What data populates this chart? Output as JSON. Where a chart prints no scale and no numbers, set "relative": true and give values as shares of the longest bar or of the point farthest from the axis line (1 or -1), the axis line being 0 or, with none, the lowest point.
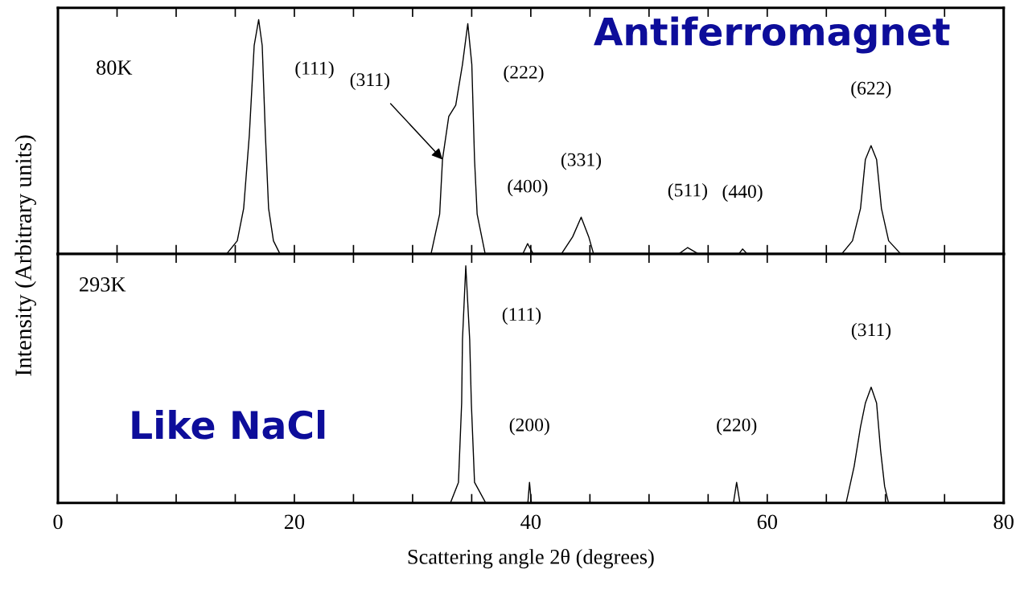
{
  "chart_data": [
    {
      "type": "line",
      "relative": true,
      "ylabel": "Intensity (Arbitrary units)",
      "xlim": [
        0,
        80
      ],
      "tick_labels": false,
      "marker": "none",
      "line_style": "solid",
      "grid": false,
      "legend": false,
      "xticks": [
        {
          "value": 0,
          "label": null
        },
        {
          "value": 5,
          "label": null
        },
        {
          "value": 10,
          "label": null
        },
        {
          "value": 15,
          "label": null
        },
        {
          "value": 20,
          "label": null
        },
        {
          "value": 25,
          "label": null
        },
        {
          "value": 30,
          "label": null
        },
        {
          "value": 35,
          "label": null
        },
        {
          "value": 40,
          "label": null
        },
        {
          "value": 45,
          "label": null
        },
        {
          "value": 50,
          "label": null
        },
        {
          "value": 55,
          "label": null
        },
        {
          "value": 60,
          "label": null
        },
        {
          "value": 65,
          "label": null
        },
        {
          "value": 70,
          "label": null
        },
        {
          "value": 75,
          "label": null
        },
        {
          "value": 80,
          "label": null
        }
      ],
      "series": [
        {
          "color": "#000000",
          "x": [
            0,
            14.27,
            15.17,
            15.71,
            16.19,
            16.6,
            16.98,
            17.28,
            17.55,
            17.82,
            18.23,
            18.78,
            31.56,
            32.29,
            32.53,
            33.06,
            33.65,
            34.22,
            34.67,
            35.01,
            35.24,
            35.46,
            36.14,
            39.32,
            39.73,
            40.2,
            42.59,
            43.54,
            44.26,
            44.9,
            45.31,
            52.52,
            53.27,
            54.17,
            57.6,
            57.91,
            58.3,
            66.3,
            67.21,
            67.89,
            68.3,
            68.78,
            69.25,
            69.66,
            70.27,
            71.29,
            80
          ],
          "values": [
            0,
            0,
            0.056,
            0.194,
            0.507,
            0.889,
            1.0,
            0.889,
            0.507,
            0.194,
            0.056,
            0,
            0,
            0.17,
            0.403,
            0.587,
            0.635,
            0.809,
            0.983,
            0.809,
            0.403,
            0.17,
            0,
            0,
            0.044,
            0,
            0,
            0.073,
            0.157,
            0.073,
            0,
            0,
            0.027,
            0,
            0,
            0.021,
            0,
            0,
            0.056,
            0.194,
            0.403,
            0.462,
            0.403,
            0.194,
            0.056,
            0,
            0
          ]
        }
      ],
      "annotations": [
        "80K",
        "Antiferromagnet",
        {
          "text": "(111)",
          "x": 16.98,
          "y": 1.0
        },
        {
          "text": "(222)",
          "x": 34.67,
          "y": 0.983
        },
        {
          "text": "(311)",
          "x": 32.53,
          "y": 0.403
        },
        {
          "text": "(400)",
          "x": 39.73,
          "y": 0.044
        },
        {
          "text": "(331)",
          "x": 44.26,
          "y": 0.157
        },
        {
          "text": "(511)",
          "x": 53.27,
          "y": 0.027
        },
        {
          "text": "(440)",
          "x": 57.91,
          "y": 0.021
        },
        {
          "text": "(622)",
          "x": 68.78,
          "y": 0.462
        }
      ]
    },
    {
      "type": "line",
      "relative": true,
      "xlabel": "Scattering angle 2θ (degrees)",
      "xlim": [
        0,
        80
      ],
      "tick_labels": "x",
      "marker": "none",
      "line_style": "solid",
      "grid": false,
      "legend": false,
      "xticks": [
        0,
        {
          "value": 5,
          "label": null
        },
        {
          "value": 10,
          "label": null
        },
        {
          "value": 15,
          "label": null
        },
        20,
        {
          "value": 25,
          "label": null
        },
        {
          "value": 30,
          "label": null
        },
        {
          "value": 35,
          "label": null
        },
        40,
        {
          "value": 45,
          "label": null
        },
        {
          "value": 50,
          "label": null
        },
        {
          "value": 55,
          "label": null
        },
        60,
        {
          "value": 65,
          "label": null
        },
        {
          "value": 70,
          "label": null
        },
        {
          "value": 75,
          "label": null
        },
        80
      ],
      "series": [
        {
          "color": "#000000",
          "x": [
            0,
            33.2,
            33.88,
            34.15,
            34.22,
            34.5,
            34.83,
            34.97,
            35.24,
            36.19,
            39.75,
            39.89,
            40.05,
            57.14,
            57.41,
            57.69,
            66.67,
            67.35,
            67.89,
            68.3,
            68.79,
            69.25,
            69.59,
            69.93,
            70.26,
            80
          ],
          "values": [
            0,
            0,
            0.087,
            0.421,
            0.689,
            1.0,
            0.689,
            0.421,
            0.087,
            0,
            0,
            0.087,
            0,
            0,
            0.087,
            0,
            0,
            0.154,
            0.321,
            0.421,
            0.488,
            0.421,
            0.221,
            0.07,
            0,
            0
          ]
        }
      ],
      "annotations": [
        "293K",
        "Like NaCl",
        {
          "text": "(111)",
          "x": 34.5,
          "y": 1.0
        },
        {
          "text": "(200)",
          "x": 39.89,
          "y": 0.087
        },
        {
          "text": "(220)",
          "x": 57.41,
          "y": 0.087
        },
        {
          "text": "(311)",
          "x": 68.79,
          "y": 0.488
        }
      ]
    }
  ]
}
